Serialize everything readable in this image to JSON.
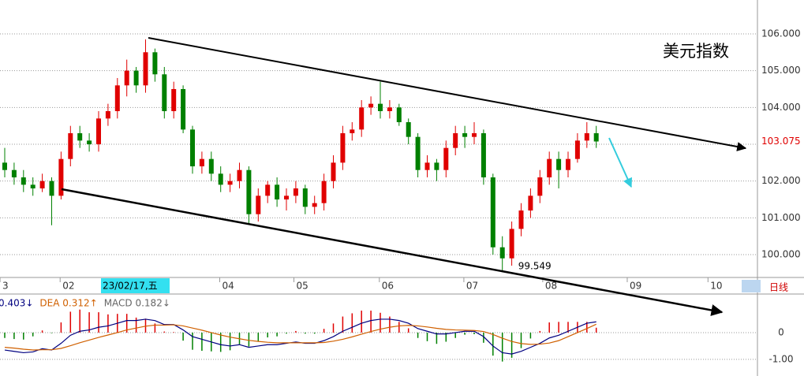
{
  "chart_data": {
    "type": "candlestick",
    "title": "美元指数",
    "ylim": [
      99.38,
      106.92
    ],
    "yticks": [
      {
        "value": 100,
        "label": "100.000"
      },
      {
        "value": 101,
        "label": "101.000"
      },
      {
        "value": 102,
        "label": "102.000"
      },
      {
        "value": 103,
        "label": "103.000"
      },
      {
        "value": 104,
        "label": "104.000"
      },
      {
        "value": 105,
        "label": "105.000"
      },
      {
        "value": 106,
        "label": "106.000"
      }
    ],
    "up_color": "#e00000",
    "down_color": "#008000",
    "open": [
      102.5,
      102.3,
      102.1,
      101.9,
      101.8,
      102.0,
      101.6,
      102.6,
      103.3,
      103.1,
      103.0,
      103.7,
      103.9,
      104.6,
      105.0,
      104.6,
      105.5,
      104.9,
      103.9,
      104.5,
      103.4,
      102.4,
      102.6,
      102.2,
      101.9,
      102.0,
      102.3,
      101.1,
      101.6,
      101.9,
      101.5,
      101.6,
      101.8,
      101.3,
      101.4,
      102.0,
      102.5,
      103.3,
      103.4,
      104.0,
      104.1,
      103.9,
      104.0,
      103.6,
      103.2,
      102.3,
      102.5,
      102.3,
      102.9,
      103.3,
      103.2,
      103.3,
      102.1,
      100.2,
      99.9,
      100.7,
      101.2,
      101.6,
      102.1,
      102.6,
      102.3,
      102.6,
      103.1,
      103.3
    ],
    "high": [
      102.9,
      102.5,
      102.3,
      102.1,
      102.2,
      102.1,
      102.8,
      103.5,
      103.5,
      103.3,
      103.9,
      104.1,
      104.8,
      105.3,
      105.1,
      105.85,
      105.6,
      105.1,
      104.7,
      104.6,
      103.5,
      102.8,
      102.8,
      102.4,
      102.2,
      102.5,
      102.4,
      101.8,
      102.0,
      102.1,
      101.8,
      102.0,
      101.9,
      101.6,
      102.2,
      102.7,
      103.5,
      103.6,
      104.2,
      104.3,
      104.7,
      104.2,
      104.1,
      103.7,
      103.3,
      102.7,
      102.6,
      103.1,
      103.5,
      103.5,
      103.6,
      103.4,
      102.2,
      100.5,
      100.9,
      101.4,
      101.8,
      102.3,
      102.8,
      102.8,
      102.8,
      103.3,
      103.6,
      103.5
    ],
    "low": [
      102.1,
      101.9,
      101.7,
      101.6,
      101.7,
      100.8,
      101.5,
      102.4,
      102.9,
      102.8,
      102.8,
      103.5,
      103.7,
      104.3,
      104.4,
      104.4,
      104.7,
      103.7,
      103.7,
      103.3,
      102.2,
      102.2,
      102.0,
      101.7,
      101.7,
      101.8,
      100.85,
      100.9,
      101.4,
      101.3,
      101.2,
      101.4,
      101.1,
      101.1,
      101.2,
      101.8,
      102.3,
      103.1,
      103.2,
      103.8,
      103.7,
      103.7,
      103.5,
      103.0,
      102.1,
      102.1,
      102.0,
      102.1,
      102.7,
      102.9,
      103.0,
      101.9,
      100.0,
      99.549,
      99.7,
      100.5,
      101.0,
      101.4,
      101.9,
      101.8,
      102.1,
      102.5,
      102.9,
      102.9
    ],
    "close": [
      102.3,
      102.1,
      101.9,
      101.8,
      102.0,
      101.6,
      102.6,
      103.3,
      103.1,
      103.0,
      103.7,
      103.9,
      104.6,
      105.0,
      104.6,
      105.5,
      104.9,
      103.9,
      104.5,
      103.4,
      102.4,
      102.6,
      102.2,
      101.9,
      102.0,
      102.3,
      101.1,
      101.6,
      101.9,
      101.5,
      101.6,
      101.8,
      101.3,
      101.4,
      102.0,
      102.5,
      103.3,
      103.4,
      104.0,
      104.1,
      103.9,
      104.0,
      103.6,
      103.2,
      102.3,
      102.5,
      102.3,
      102.9,
      103.3,
      103.2,
      103.3,
      102.1,
      100.2,
      99.9,
      100.7,
      101.2,
      101.6,
      102.1,
      102.6,
      102.3,
      102.6,
      103.1,
      103.3,
      103.075
    ],
    "x_labels": [
      {
        "label": "3",
        "at": -0.5
      },
      {
        "label": "02",
        "at": 5.9
      },
      {
        "label": "04",
        "at": 22.9
      },
      {
        "label": "05",
        "at": 30.8
      },
      {
        "label": "06",
        "at": 39.9
      },
      {
        "label": "07",
        "at": 48.9
      },
      {
        "label": "08",
        "at": 57.3
      },
      {
        "label": "09",
        "at": 66.3
      },
      {
        "label": "10",
        "at": 74.9
      }
    ],
    "cursor_label": {
      "label": "23/02/17,五",
      "at": 10.25
    },
    "period": "日线",
    "macd": {
      "legend": [
        "0.403↓",
        "DEA 0.312↑",
        "MACD 0.182↓"
      ],
      "ylim": [
        -1.62,
        1.44
      ],
      "yticks": [
        0,
        {
          "value": -1,
          "label": "-1.00"
        }
      ],
      "dif_color": "#000080",
      "dea_color": "#d06000",
      "dif": [
        -0.65,
        -0.7,
        -0.75,
        -0.72,
        -0.6,
        -0.65,
        -0.4,
        -0.1,
        0.05,
        0.1,
        0.2,
        0.25,
        0.35,
        0.45,
        0.45,
        0.5,
        0.45,
        0.3,
        0.3,
        0.1,
        -0.15,
        -0.25,
        -0.35,
        -0.45,
        -0.5,
        -0.45,
        -0.55,
        -0.5,
        -0.45,
        -0.45,
        -0.4,
        -0.35,
        -0.4,
        -0.4,
        -0.3,
        -0.15,
        0.05,
        0.2,
        0.35,
        0.45,
        0.5,
        0.5,
        0.45,
        0.35,
        0.15,
        0.05,
        -0.05,
        -0.05,
        0.0,
        0.05,
        0.05,
        -0.15,
        -0.5,
        -0.75,
        -0.8,
        -0.7,
        -0.55,
        -0.4,
        -0.2,
        -0.1,
        0.05,
        0.2,
        0.35,
        0.403
      ],
      "dea": [
        -0.55,
        -0.58,
        -0.62,
        -0.65,
        -0.64,
        -0.64,
        -0.59,
        -0.49,
        -0.38,
        -0.28,
        -0.18,
        -0.09,
        0.0,
        0.1,
        0.17,
        0.24,
        0.28,
        0.28,
        0.29,
        0.25,
        0.17,
        0.09,
        0.0,
        -0.09,
        -0.17,
        -0.23,
        -0.29,
        -0.33,
        -0.36,
        -0.38,
        -0.38,
        -0.38,
        -0.38,
        -0.38,
        -0.37,
        -0.32,
        -0.25,
        -0.16,
        -0.06,
        0.04,
        0.13,
        0.2,
        0.25,
        0.27,
        0.25,
        0.21,
        0.16,
        0.12,
        0.1,
        0.09,
        0.08,
        0.04,
        -0.07,
        -0.21,
        -0.33,
        -0.41,
        -0.44,
        -0.43,
        -0.39,
        -0.3,
        -0.15,
        0.0,
        0.15,
        0.312
      ],
      "hist": [
        -0.2,
        -0.24,
        -0.26,
        -0.14,
        0.08,
        -0.02,
        0.38,
        0.78,
        0.86,
        0.76,
        0.76,
        0.68,
        0.7,
        0.7,
        0.56,
        0.52,
        0.34,
        0.04,
        0.02,
        -0.3,
        -0.64,
        -0.68,
        -0.7,
        -0.72,
        -0.66,
        -0.44,
        -0.52,
        -0.34,
        -0.18,
        -0.14,
        -0.04,
        0.06,
        -0.04,
        -0.04,
        0.14,
        0.34,
        0.6,
        0.72,
        0.82,
        0.82,
        0.74,
        0.6,
        0.4,
        0.16,
        -0.2,
        -0.32,
        -0.42,
        -0.34,
        -0.2,
        -0.08,
        -0.06,
        -0.38,
        -0.86,
        -1.08,
        -0.94,
        -0.58,
        -0.22,
        0.06,
        0.38,
        0.4,
        0.4,
        0.4,
        0.4,
        0.182
      ]
    }
  }
}
